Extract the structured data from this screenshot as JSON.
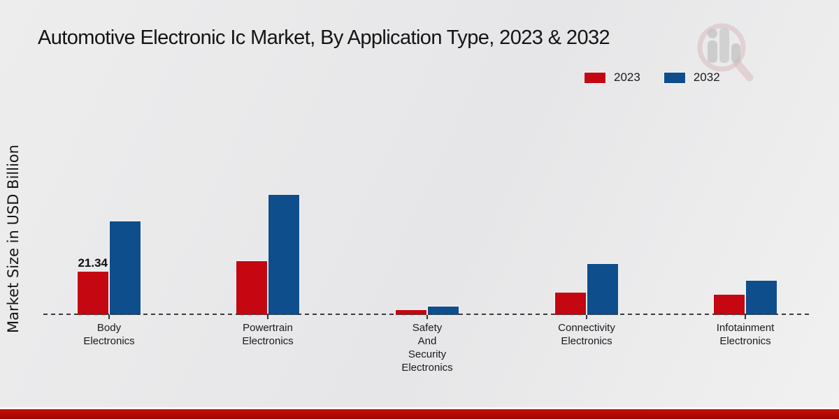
{
  "title": "Automotive Electronic Ic Market, By Application Type, 2023 & 2032",
  "ylabel": "Market Size in USD Billion",
  "legend": {
    "items": [
      {
        "label": "2023",
        "color": "#c40711"
      },
      {
        "label": "2032",
        "color": "#0e4e8c"
      }
    ]
  },
  "watermark": {
    "icon": "market-research-future-logo"
  },
  "footer": {
    "accent_color": "#b20600"
  },
  "chart_data": {
    "type": "bar",
    "title": "Automotive Electronic Ic Market, By Application Type, 2023 & 2032",
    "ylabel": "Market Size in USD Billion",
    "categories": [
      "Body\nElectronics",
      "Powertrain\nElectronics",
      "Safety\nAnd\nSecurity\nElectronics",
      "Connectivity\nElectronics",
      "Infotainment\nElectronics"
    ],
    "series": [
      {
        "name": "2023",
        "color": "#c40711",
        "values": [
          21.34,
          26.4,
          2.8,
          11.1,
          10.2
        ]
      },
      {
        "name": "2032",
        "color": "#0e4e8c",
        "values": [
          45.4,
          58.3,
          4.5,
          25.0,
          16.9
        ]
      }
    ],
    "data_labels": [
      {
        "series": "2023",
        "category_index": 0,
        "text": "21.34"
      }
    ],
    "axis": {
      "baseline_style": "dashed",
      "y_tick_labels_visible": false,
      "ylim": [
        0,
        65
      ]
    },
    "legend_position": "top-right",
    "grid": false
  }
}
